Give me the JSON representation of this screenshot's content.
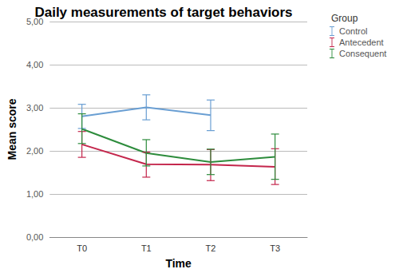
{
  "chart_data": {
    "type": "line",
    "title": "Daily measurements of target behaviors",
    "x_label": "Time",
    "y_label": "Mean score",
    "legend_title": "Group",
    "categories": [
      "T0",
      "T1",
      "T2",
      "T3"
    ],
    "series": [
      {
        "name": "Control",
        "color": "#6a9fd3",
        "values": [
          2.8,
          3.01,
          2.83,
          null
        ],
        "lower": [
          2.52,
          2.72,
          2.47,
          null
        ],
        "upper": [
          3.08,
          3.3,
          3.18,
          null
        ]
      },
      {
        "name": "Antecedent",
        "color": "#c4264c",
        "values": [
          2.15,
          1.69,
          1.68,
          1.63
        ],
        "lower": [
          1.85,
          1.39,
          1.31,
          1.22
        ],
        "upper": [
          2.45,
          1.97,
          2.03,
          2.05
        ]
      },
      {
        "name": "Consequent",
        "color": "#2d8c3c",
        "values": [
          2.51,
          1.95,
          1.74,
          1.86
        ],
        "lower": [
          2.17,
          1.65,
          1.45,
          1.34
        ],
        "upper": [
          2.86,
          2.26,
          2.04,
          2.39
        ]
      }
    ],
    "ylim": [
      0,
      5
    ],
    "yticks": [
      {
        "value": 0,
        "label": "0,00"
      },
      {
        "value": 1,
        "label": "1,00"
      },
      {
        "value": 2,
        "label": "2,00"
      },
      {
        "value": 3,
        "label": "3,00"
      },
      {
        "value": 4,
        "label": "4,00"
      },
      {
        "value": 5,
        "label": "5,00"
      }
    ],
    "grid": true,
    "legend": "top-right"
  }
}
